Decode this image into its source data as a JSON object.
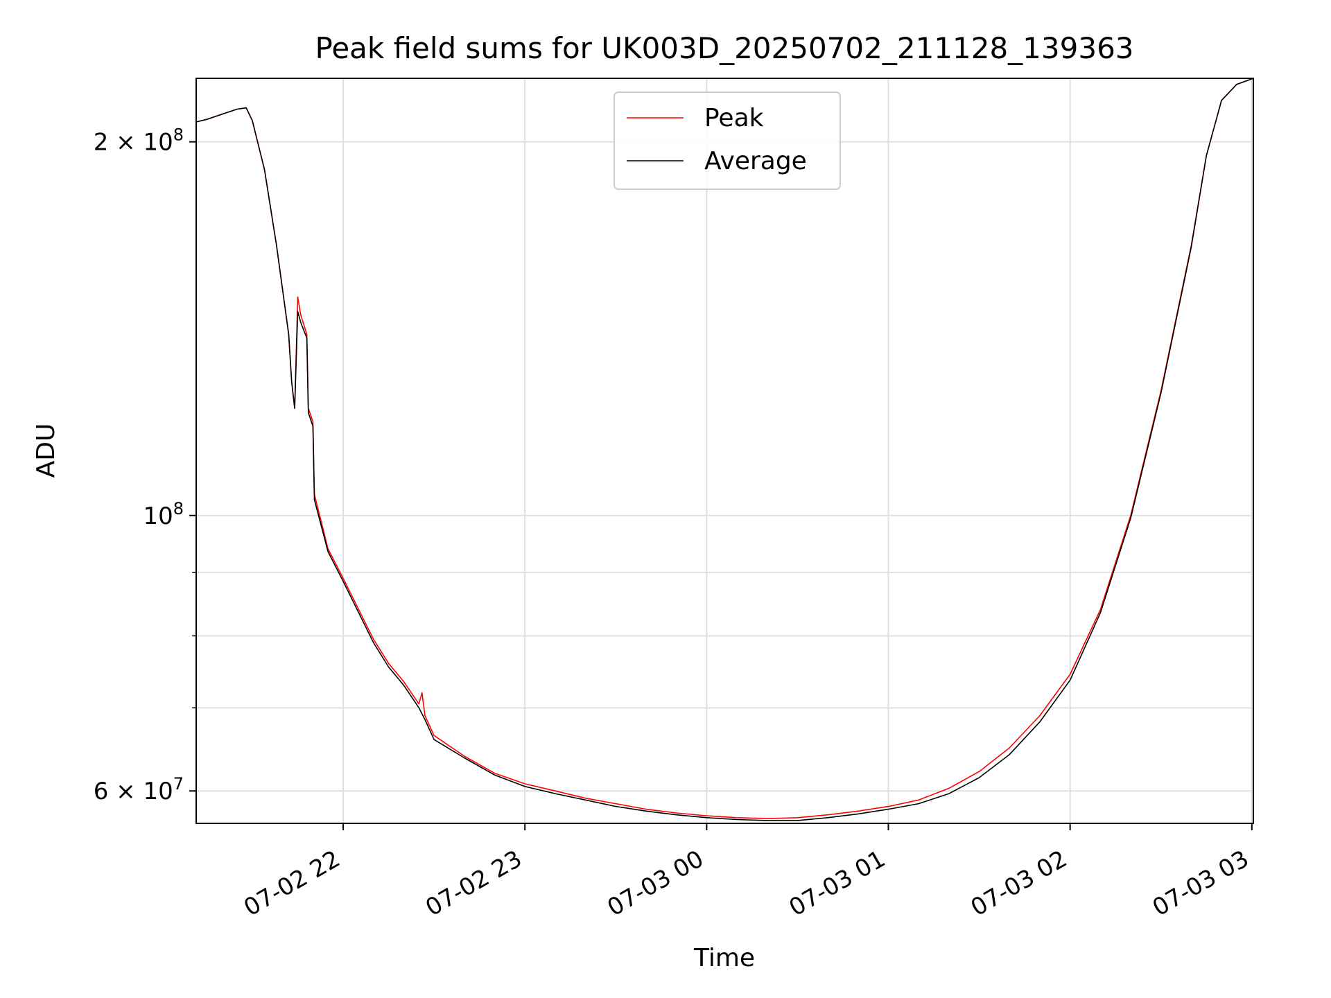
{
  "chart_data": {
    "type": "line",
    "title": "Peak field sums for UK003D_20250702_211128_139363",
    "xlabel": "Time",
    "ylabel": "ADU",
    "x_axis": {
      "type": "time",
      "xlim": [
        "2025-07-02 21:11:28",
        "2025-07-03 03:00:30"
      ],
      "ticks": [
        {
          "value": "2025-07-02 22:00",
          "label": "07-02 22"
        },
        {
          "value": "2025-07-02 23:00",
          "label": "07-02 23"
        },
        {
          "value": "2025-07-03 00:00",
          "label": "07-03 00"
        },
        {
          "value": "2025-07-03 01:00",
          "label": "07-03 01"
        },
        {
          "value": "2025-07-03 02:00",
          "label": "07-03 02"
        },
        {
          "value": "2025-07-03 03:00",
          "label": "07-03 03"
        }
      ]
    },
    "y_axis": {
      "scale": "log",
      "ylim": [
        56500000,
        225000000
      ],
      "major_ticks": [
        {
          "value": 60000000,
          "base": "6 × 10",
          "exp": "7"
        },
        {
          "value": 100000000,
          "base": "10",
          "exp": "8"
        },
        {
          "value": 200000000,
          "base": "2 × 10",
          "exp": "8"
        }
      ],
      "minor_ticks": [
        70000000,
        80000000,
        90000000
      ]
    },
    "grid": true,
    "legend": {
      "position": "top-center"
    },
    "colors": {
      "Peak": "#ff0000",
      "Average": "#000000"
    },
    "series": [
      {
        "name": "Peak",
        "color": "#ff0000",
        "points": [
          [
            "2025-07-02 21:11:28",
            207500000
          ],
          [
            "2025-07-02 21:15",
            208500000
          ],
          [
            "2025-07-02 21:20",
            210500000
          ],
          [
            "2025-07-02 21:25",
            212500000
          ],
          [
            "2025-07-02 21:28",
            213000000
          ],
          [
            "2025-07-02 21:30",
            208000000
          ],
          [
            "2025-07-02 21:34",
            190000000
          ],
          [
            "2025-07-02 21:38",
            165000000
          ],
          [
            "2025-07-02 21:42",
            140000000
          ],
          [
            "2025-07-02 21:43",
            128000000
          ],
          [
            "2025-07-02 21:44",
            122000000
          ],
          [
            "2025-07-02 21:45",
            150000000
          ],
          [
            "2025-07-02 21:46",
            145000000
          ],
          [
            "2025-07-02 21:48",
            140000000
          ],
          [
            "2025-07-02 21:48:30",
            122000000
          ],
          [
            "2025-07-02 21:50",
            119000000
          ],
          [
            "2025-07-02 21:50:30",
            104000000
          ],
          [
            "2025-07-02 21:55",
            94000000
          ],
          [
            "2025-07-02 22:00",
            89000000
          ],
          [
            "2025-07-02 22:10",
            79500000
          ],
          [
            "2025-07-02 22:15",
            76000000
          ],
          [
            "2025-07-02 22:20",
            73500000
          ],
          [
            "2025-07-02 22:25",
            70500000
          ],
          [
            "2025-07-02 22:26",
            72000000
          ],
          [
            "2025-07-02 22:27",
            69000000
          ],
          [
            "2025-07-02 22:30",
            66500000
          ],
          [
            "2025-07-02 22:40",
            64000000
          ],
          [
            "2025-07-02 22:50",
            62000000
          ],
          [
            "2025-07-02 23:00",
            60800000
          ],
          [
            "2025-07-02 23:10",
            60000000
          ],
          [
            "2025-07-02 23:20",
            59200000
          ],
          [
            "2025-07-02 23:30",
            58600000
          ],
          [
            "2025-07-02 23:40",
            58000000
          ],
          [
            "2025-07-02 23:50",
            57600000
          ],
          [
            "2025-07-03 00:00",
            57300000
          ],
          [
            "2025-07-03 00:10",
            57100000
          ],
          [
            "2025-07-03 00:20",
            57000000
          ],
          [
            "2025-07-03 00:30",
            57100000
          ],
          [
            "2025-07-03 00:40",
            57400000
          ],
          [
            "2025-07-03 00:50",
            57800000
          ],
          [
            "2025-07-03 01:00",
            58300000
          ],
          [
            "2025-07-03 01:10",
            59000000
          ],
          [
            "2025-07-03 01:20",
            60300000
          ],
          [
            "2025-07-03 01:30",
            62200000
          ],
          [
            "2025-07-03 01:40",
            65000000
          ],
          [
            "2025-07-03 01:50",
            69000000
          ],
          [
            "2025-07-03 02:00",
            74500000
          ],
          [
            "2025-07-03 02:10",
            84000000
          ],
          [
            "2025-07-03 02:20",
            100000000
          ],
          [
            "2025-07-03 02:30",
            126000000
          ],
          [
            "2025-07-03 02:40",
            165000000
          ],
          [
            "2025-07-03 02:45",
            195000000
          ],
          [
            "2025-07-03 02:50",
            216000000
          ],
          [
            "2025-07-03 02:55",
            222500000
          ],
          [
            "2025-07-03 03:00:30",
            225000000
          ]
        ]
      },
      {
        "name": "Average",
        "color": "#000000",
        "points": [
          [
            "2025-07-02 21:11:28",
            207500000
          ],
          [
            "2025-07-02 21:15",
            208500000
          ],
          [
            "2025-07-02 21:20",
            210500000
          ],
          [
            "2025-07-02 21:25",
            212500000
          ],
          [
            "2025-07-02 21:28",
            213000000
          ],
          [
            "2025-07-02 21:30",
            208000000
          ],
          [
            "2025-07-02 21:34",
            190000000
          ],
          [
            "2025-07-02 21:38",
            165000000
          ],
          [
            "2025-07-02 21:42",
            140000000
          ],
          [
            "2025-07-02 21:43",
            128000000
          ],
          [
            "2025-07-02 21:44",
            122000000
          ],
          [
            "2025-07-02 21:45",
            146000000
          ],
          [
            "2025-07-02 21:46",
            143000000
          ],
          [
            "2025-07-02 21:48",
            139000000
          ],
          [
            "2025-07-02 21:48:30",
            121000000
          ],
          [
            "2025-07-02 21:50",
            118000000
          ],
          [
            "2025-07-02 21:50:30",
            103000000
          ],
          [
            "2025-07-02 21:55",
            93500000
          ],
          [
            "2025-07-02 22:00",
            88500000
          ],
          [
            "2025-07-02 22:10",
            79000000
          ],
          [
            "2025-07-02 22:15",
            75500000
          ],
          [
            "2025-07-02 22:20",
            73000000
          ],
          [
            "2025-07-02 22:25",
            70000000
          ],
          [
            "2025-07-02 22:27",
            68500000
          ],
          [
            "2025-07-02 22:30",
            66000000
          ],
          [
            "2025-07-02 22:40",
            63800000
          ],
          [
            "2025-07-02 22:50",
            61800000
          ],
          [
            "2025-07-02 23:00",
            60500000
          ],
          [
            "2025-07-02 23:10",
            59700000
          ],
          [
            "2025-07-02 23:20",
            59000000
          ],
          [
            "2025-07-02 23:30",
            58300000
          ],
          [
            "2025-07-02 23:40",
            57800000
          ],
          [
            "2025-07-02 23:50",
            57400000
          ],
          [
            "2025-07-03 00:00",
            57100000
          ],
          [
            "2025-07-03 00:10",
            56900000
          ],
          [
            "2025-07-03 00:20",
            56800000
          ],
          [
            "2025-07-03 00:30",
            56800000
          ],
          [
            "2025-07-03 00:40",
            57100000
          ],
          [
            "2025-07-03 00:50",
            57500000
          ],
          [
            "2025-07-03 01:00",
            58000000
          ],
          [
            "2025-07-03 01:10",
            58600000
          ],
          [
            "2025-07-03 01:20",
            59700000
          ],
          [
            "2025-07-03 01:30",
            61500000
          ],
          [
            "2025-07-03 01:40",
            64200000
          ],
          [
            "2025-07-03 01:50",
            68200000
          ],
          [
            "2025-07-03 02:00",
            73700000
          ],
          [
            "2025-07-03 02:10",
            83500000
          ],
          [
            "2025-07-03 02:20",
            99500000
          ],
          [
            "2025-07-03 02:30",
            125500000
          ],
          [
            "2025-07-03 02:40",
            164500000
          ],
          [
            "2025-07-03 02:45",
            195000000
          ],
          [
            "2025-07-03 02:50",
            216000000
          ],
          [
            "2025-07-03 02:55",
            222500000
          ],
          [
            "2025-07-03 03:00:30",
            225000000
          ]
        ]
      }
    ]
  }
}
